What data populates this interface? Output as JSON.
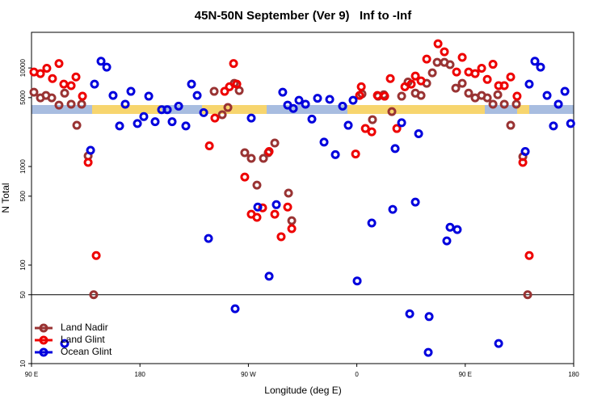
{
  "chart_data": {
    "type": "scatter",
    "title": "45N-50N September (Ver 9)   Inf to -Inf",
    "x_label": "Longitude (deg E)",
    "y_label": "N Total",
    "xlim": [
      90,
      540
    ],
    "xticks": [
      {
        "value": 90,
        "label": "90 E"
      },
      {
        "value": 180,
        "label": "180"
      },
      {
        "value": 270,
        "label": "90 W"
      },
      {
        "value": 360,
        "label": "0"
      },
      {
        "value": 450,
        "label": "90 E"
      },
      {
        "value": 540,
        "label": "180"
      }
    ],
    "ylim": [
      10,
      23000
    ],
    "y_log": true,
    "yticks": [
      10,
      50,
      100,
      500,
      1000,
      5000,
      10000
    ],
    "hline": 50,
    "legend": "lower left",
    "series": [
      {
        "name": "Land Nadir",
        "color": "#993333",
        "x": [
          92,
          97.4,
          102,
          106.8,
          112.8,
          117.5,
          122.9,
          127.6,
          131.6,
          137,
          141.6,
          241.6,
          248.3,
          253,
          258.3,
          262.4,
          267,
          272.4,
          277.1,
          282.5,
          286.5,
          291.9,
          303.3,
          306,
          364.3,
          373,
          377.7,
          382.4,
          389.1,
          397.2,
          402.5,
          408.6,
          413.3,
          418,
          422.7,
          426.7,
          432.7,
          437.4,
          442.1,
          447.5,
          452.8,
          458.2,
          463.6,
          468.3,
          473,
          477,
          482.4,
          487.7,
          492.4,
          497.8,
          501.8
        ],
        "values": [
          5680,
          4970,
          5260,
          4970,
          4200,
          5550,
          4290,
          2620,
          4290,
          1280,
          50,
          5790,
          3350,
          3970,
          6980,
          5900,
          1380,
          1210,
          647,
          1210,
          1380,
          1730,
          537,
          282,
          5450,
          2990,
          5170,
          5350,
          3610,
          5170,
          7200,
          5550,
          5260,
          6980,
          8930,
          11400,
          11400,
          10800,
          6240,
          6980,
          5550,
          4970,
          5260,
          4970,
          4290,
          5350,
          4290,
          2620,
          4290,
          1260,
          50
        ]
      },
      {
        "name": "Land Glint",
        "color": "#ee0000",
        "x": [
          92,
          97.4,
          102.7,
          107.4,
          112.8,
          116.8,
          122.9,
          126.9,
          132.3,
          137,
          143.7,
          237.6,
          242.2,
          250.3,
          254.3,
          257.7,
          260.4,
          267,
          272.4,
          277.1,
          281.8,
          287.2,
          291.9,
          297.2,
          302.6,
          306,
          359,
          362.3,
          363.7,
          367.1,
          372.4,
          377.1,
          383.1,
          387.8,
          393.2,
          399.9,
          405.2,
          408.6,
          413.3,
          418,
          427.4,
          432.7,
          442.8,
          447.5,
          452.8,
          458.2,
          463.6,
          468.3,
          473,
          477.7,
          482.4,
          487.7,
          493,
          497.8,
          503.1
        ],
        "values": [
          9100,
          8770,
          9920,
          7800,
          11100,
          6850,
          6620,
          8100,
          5170,
          1100,
          125,
          1620,
          3100,
          5790,
          6450,
          11100,
          6850,
          782,
          328,
          305,
          381,
          1420,
          328,
          194,
          388,
          234,
          1340,
          5260,
          6450,
          2430,
          2250,
          5260,
          5170,
          7800,
          2430,
          6450,
          6850,
          8270,
          7400,
          12300,
          17600,
          14600,
          9100,
          12800,
          9100,
          8770,
          9920,
          7650,
          10900,
          6620,
          6620,
          8100,
          5170,
          1100,
          125
        ]
      },
      {
        "name": "Ocean Glint",
        "color": "#0000dd",
        "x": [
          117.5,
          139,
          142.3,
          147.7,
          152.4,
          157.7,
          163.1,
          167.8,
          172.5,
          177.9,
          183.2,
          187.3,
          192.6,
          198,
          202.7,
          206.7,
          212.1,
          218.1,
          222.8,
          227.5,
          232.9,
          236.9,
          259,
          272.4,
          277.8,
          287.2,
          293.2,
          298.5,
          302.6,
          307.3,
          312,
          317.4,
          322.7,
          327.4,
          332.8,
          337.5,
          342.2,
          348.2,
          352.9,
          356.9,
          360.3,
          372.4,
          389.8,
          391.8,
          397.2,
          403.9,
          408.6,
          411.3,
          420,
          419.3,
          434.7,
          437.4,
          443.4,
          477.7,
          499.8,
          503.1,
          507.8,
          512.5,
          517.9,
          523.2,
          527.3,
          532.7,
          537.5
        ],
        "values": [
          16,
          1460,
          6850,
          11700,
          10200,
          5260,
          2580,
          4290,
          5790,
          2730,
          3210,
          5170,
          2850,
          3770,
          3770,
          2850,
          4100,
          2580,
          6850,
          5260,
          3520,
          186,
          36,
          3100,
          388,
          77,
          410,
          5680,
          4200,
          3880,
          4700,
          4290,
          3030,
          4930,
          1770,
          4800,
          1320,
          4100,
          2620,
          4700,
          69,
          267,
          367,
          1520,
          2780,
          32,
          435,
          2150,
          30,
          13,
          176,
          242,
          229,
          16,
          1420,
          6850,
          11700,
          10200,
          5260,
          2580,
          4290,
          5790,
          2730
        ]
      }
    ]
  }
}
